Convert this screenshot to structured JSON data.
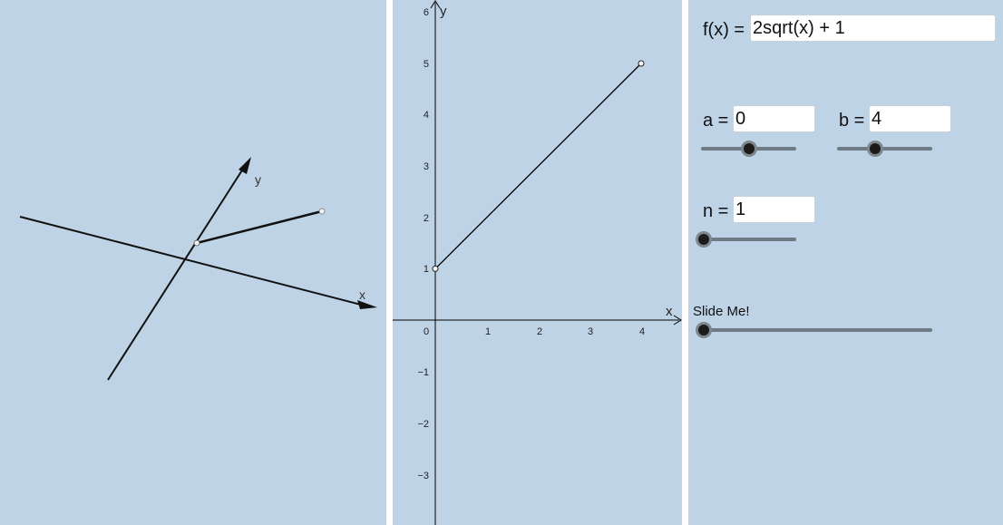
{
  "view3d": {
    "axis_x_label": "x",
    "axis_y_label": "y"
  },
  "graph": {
    "axis_x_label": "x",
    "axis_y_label": "y",
    "x_ticks": [
      "0",
      "1",
      "2",
      "3",
      "4"
    ],
    "y_ticks_pos": [
      "1",
      "2",
      "3",
      "4",
      "5",
      "6"
    ],
    "y_ticks_neg": [
      "−1",
      "−2",
      "−3"
    ],
    "segment": {
      "x1": 0,
      "y1": 1,
      "x2": 4,
      "y2": 5
    }
  },
  "controls": {
    "function_label": "f(x) =",
    "function_value": "2sqrt(x) + 1",
    "a_label": "a =",
    "a_value": "0",
    "b_label": "b =",
    "b_value": "4",
    "n_label": "n =",
    "n_value": "1",
    "slide_label": "Slide Me!",
    "sliders": {
      "a": 0.5,
      "b": 0.4,
      "n": 0.0,
      "slide": 0.0
    }
  },
  "colors": {
    "panel_bg": "#bed3e6",
    "divider": "#ffffff",
    "axis": "#000000",
    "slider_track": "#6e7a84",
    "slider_knob": "#1b1b1b"
  }
}
